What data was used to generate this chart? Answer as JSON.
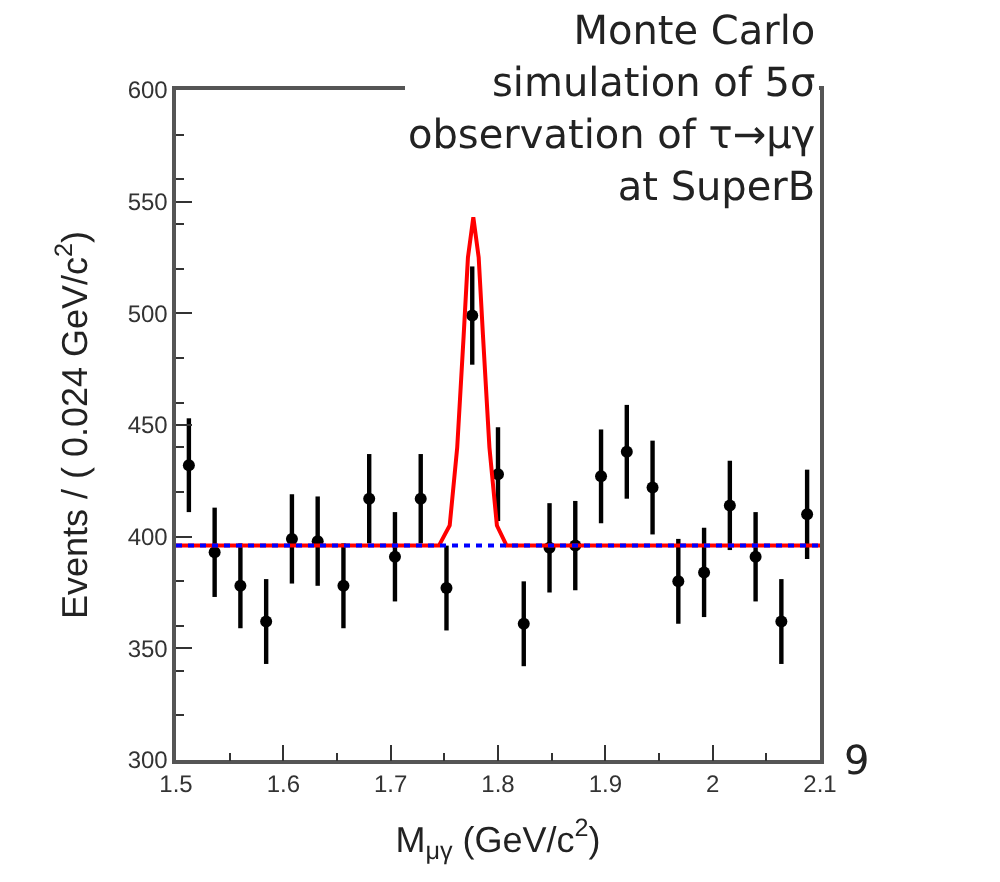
{
  "chart_data": {
    "type": "scatter",
    "xlabel": "M$_{μγ}$ (GeV/c$^{2}$)",
    "ylabel": "Events / ( 0.024 GeV/c$^{2}$)",
    "annotations": [
      "Monte Carlo\nsimulation of 5σ\nobservation of τ→μγ\nat SuperB",
      "9"
    ],
    "xlim": [
      1.5,
      2.1
    ],
    "xticks": [
      1.5,
      1.6,
      1.7,
      1.8,
      1.9,
      2,
      2.1
    ],
    "ylim": [
      300,
      600
    ],
    "yticks": [
      300,
      350,
      400,
      450,
      500,
      550,
      600
    ],
    "legend": false,
    "series": [
      {
        "color": "#000000",
        "marker": "circle",
        "x": [
          1.512,
          1.536,
          1.56,
          1.584,
          1.608,
          1.632,
          1.656,
          1.68,
          1.704,
          1.728,
          1.752,
          1.776,
          1.8,
          1.824,
          1.848,
          1.872,
          1.896,
          1.92,
          1.944,
          1.968,
          1.992,
          2.016,
          2.04,
          2.064,
          2.088
        ],
        "values": [
          432,
          393,
          378,
          362,
          399,
          398,
          378,
          417,
          391,
          417,
          377,
          499,
          428,
          361,
          395,
          396,
          427,
          438,
          422,
          380,
          384,
          414,
          391,
          362,
          410
        ],
        "errors": [
          21,
          20,
          19,
          19,
          20,
          20,
          19,
          20,
          20,
          20,
          19,
          22,
          21,
          19,
          20,
          20,
          21,
          21,
          21,
          19,
          20,
          20,
          20,
          19,
          20
        ]
      },
      {
        "type": "line",
        "color": "#ff0000",
        "line_style": "solid",
        "x": [
          1.5,
          1.745,
          1.755,
          1.762,
          1.768,
          1.772,
          1.777,
          1.782,
          1.786,
          1.792,
          1.799,
          1.808,
          2.1
        ],
        "values": [
          396,
          396,
          405,
          440,
          490,
          525,
          543,
          525,
          490,
          440,
          405,
          396,
          396
        ]
      },
      {
        "type": "line",
        "color": "#0000ff",
        "line_style": "dotted",
        "x": [
          1.5,
          2.1
        ],
        "values": [
          396,
          396
        ]
      }
    ]
  }
}
